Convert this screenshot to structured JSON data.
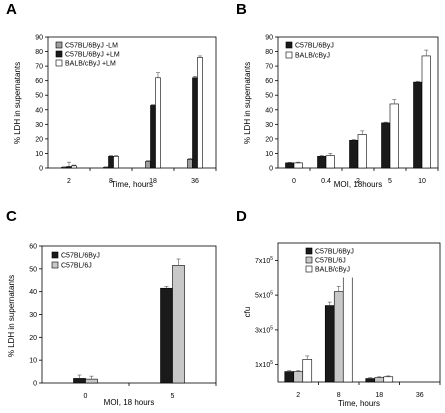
{
  "chart_data": [
    {
      "panel": "A",
      "type": "bar",
      "categories": [
        "2",
        "8",
        "18",
        "36"
      ],
      "series": [
        {
          "name": "C57BL/6ByJ -LM",
          "values": [
            0.5,
            0.5,
            4.5,
            6
          ],
          "errors": [
            0.3,
            0.3,
            0.5,
            0.5
          ]
        },
        {
          "name": "C57BL/6ByJ +LM",
          "values": [
            1,
            8,
            43,
            62
          ],
          "errors": [
            3,
            0.5,
            0.5,
            1
          ]
        },
        {
          "name": "BALB/cByJ +LM",
          "values": [
            1.5,
            8,
            62,
            76
          ],
          "errors": [
            0.5,
            0.5,
            3.5,
            1
          ]
        }
      ],
      "colors": [
        "#9e9e9e",
        "#1a1a1a",
        "#ffffff"
      ],
      "xlabel": "Time, hours",
      "ylabel": "% LDH in supernatants",
      "ylim": [
        0,
        90
      ],
      "yticks": [
        "0",
        "10",
        "20",
        "30",
        "40",
        "50",
        "60",
        "70",
        "80",
        "90"
      ],
      "grid": false,
      "legend": "top-left"
    },
    {
      "panel": "B",
      "type": "bar",
      "categories": [
        "0",
        "0.4",
        "2",
        "5",
        "10"
      ],
      "series": [
        {
          "name": "C57BL/6ByJ",
          "values": [
            3.5,
            8,
            19,
            31,
            59
          ],
          "errors": [
            0.4,
            0.6,
            0.5,
            0.5,
            0.6
          ]
        },
        {
          "name": "BALB/cByJ",
          "values": [
            3.5,
            8.5,
            23,
            44,
            77
          ],
          "errors": [
            0.5,
            1.5,
            2.5,
            3,
            4
          ]
        }
      ],
      "colors": [
        "#1a1a1a",
        "#ffffff"
      ],
      "xlabel": "MOI, 18hours",
      "ylabel": "% LDH in supernatants",
      "ylim": [
        0,
        90
      ],
      "yticks": [
        "0",
        "10",
        "20",
        "30",
        "40",
        "50",
        "60",
        "70",
        "80",
        "90"
      ],
      "grid": false,
      "legend": "top-left"
    },
    {
      "panel": "C",
      "type": "bar",
      "categories": [
        "0",
        "5"
      ],
      "series": [
        {
          "name": "C57BL/6ByJ",
          "values": [
            2,
            41.5
          ],
          "errors": [
            1.5,
            0.8
          ]
        },
        {
          "name": "C57BL/6J",
          "values": [
            1.7,
            51.5
          ],
          "errors": [
            1.3,
            2.8
          ]
        }
      ],
      "colors": [
        "#1a1a1a",
        "#c8c8c8"
      ],
      "xlabel": "MOI, 18 hours",
      "ylabel": "% LDH in supernatants",
      "ylim": [
        0,
        60
      ],
      "yticks": [
        "0",
        "10",
        "20",
        "30",
        "40",
        "50",
        "60"
      ],
      "grid": false,
      "legend": "top-left"
    },
    {
      "panel": "D",
      "type": "bar",
      "categories": [
        "2",
        "8",
        "18",
        "36"
      ],
      "series": [
        {
          "name": "C57BL/6ByJ",
          "values": [
            60000,
            440000,
            20000,
            0
          ],
          "errors": [
            5000,
            20000,
            5000,
            0
          ]
        },
        {
          "name": "C57BL/6J",
          "values": [
            60000,
            520000,
            25000,
            0
          ],
          "errors": [
            5000,
            30000,
            5000,
            0
          ]
        },
        {
          "name": "BALB/cByJ",
          "values": [
            130000,
            680000,
            30000,
            0
          ],
          "errors": [
            20000,
            50000,
            5000,
            0
          ]
        }
      ],
      "colors": [
        "#1a1a1a",
        "#c8c8c8",
        "#ffffff"
      ],
      "xlabel": "Time, hours",
      "ylabel": "cfu",
      "ylim": [
        0,
        800000
      ],
      "ytick_values": [
        100000,
        300000,
        500000,
        700000
      ],
      "ytick_labels": [
        {
          "mant": "1x10",
          "exp": "5"
        },
        {
          "mant": "3x10",
          "exp": "5"
        },
        {
          "mant": "5x10",
          "exp": "5"
        },
        {
          "mant": "7x10",
          "exp": "5"
        }
      ],
      "grid": false,
      "legend": "top-left"
    }
  ]
}
